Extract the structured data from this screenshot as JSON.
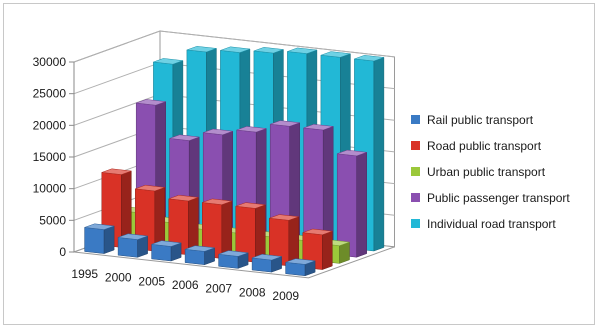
{
  "chart_data": {
    "type": "bar",
    "style": "3d-column",
    "categories": [
      "1995",
      "2000",
      "2005",
      "2006",
      "2007",
      "2008",
      "2009"
    ],
    "series": [
      {
        "name": "Rail public transport",
        "color": "#3a7ac4",
        "values": [
          3800,
          2800,
          2300,
          2100,
          1900,
          1900,
          1800
        ]
      },
      {
        "name": "Road public transport",
        "color": "#d93226",
        "values": [
          11500,
          9500,
          8500,
          8500,
          8500,
          7200,
          5500
        ]
      },
      {
        "name": "Urban public transport",
        "color": "#9bc83a",
        "values": [
          4500,
          3500,
          3000,
          3000,
          3000,
          3000,
          2800
        ]
      },
      {
        "name": "Public passenger transport",
        "color": "#8a4fb0",
        "values": [
          20500,
          15500,
          17000,
          18000,
          19500,
          19500,
          16000
        ]
      },
      {
        "name": "Individual road transport",
        "color": "#22b8d6",
        "values": [
          26000,
          28500,
          29000,
          29500,
          30000,
          30000,
          30000
        ]
      }
    ],
    "y_ticks": [
      "0",
      "5000",
      "10000",
      "15000",
      "20000",
      "25000",
      "30000"
    ],
    "ylim": [
      0,
      30000
    ],
    "grid": true,
    "legend_position": "right"
  }
}
